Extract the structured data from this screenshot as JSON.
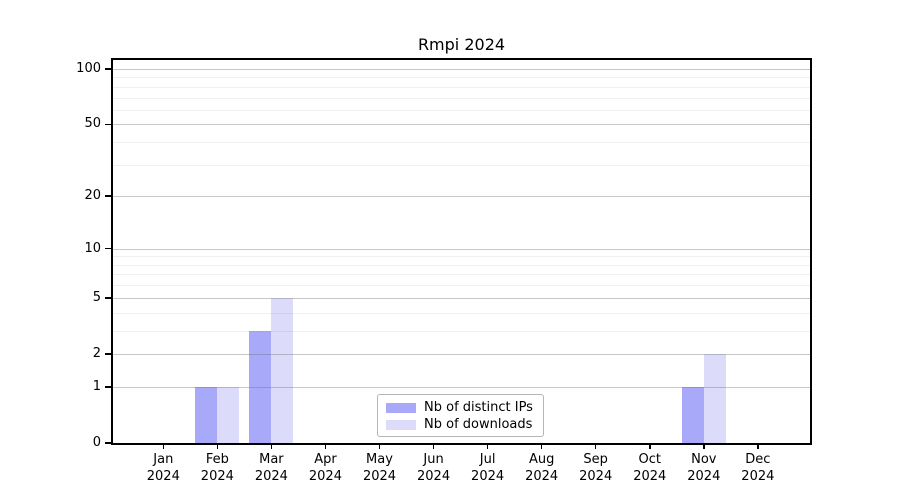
{
  "chart_data": {
    "type": "bar",
    "title": "Rmpi 2024",
    "x": {
      "months": [
        "Jan",
        "Feb",
        "Mar",
        "Apr",
        "May",
        "Jun",
        "Jul",
        "Aug",
        "Sep",
        "Oct",
        "Nov",
        "Dec"
      ],
      "year": "2024"
    },
    "series": [
      {
        "name": "Nb of distinct IPs",
        "color": "#a9a9fa",
        "values": [
          0,
          1,
          3,
          0,
          0,
          0,
          0,
          0,
          0,
          0,
          1,
          0
        ]
      },
      {
        "name": "Nb of downloads",
        "color": "#dcdcfa",
        "values": [
          0,
          1,
          5,
          0,
          0,
          0,
          0,
          0,
          0,
          0,
          2,
          0
        ]
      }
    ],
    "y_axis": {
      "scale": "log1p",
      "ylim": [
        0,
        100
      ],
      "major_ticks": [
        0,
        1,
        2,
        5,
        10,
        20,
        50,
        100
      ],
      "minor_ticks": [
        3,
        4,
        6,
        7,
        8,
        9,
        30,
        40,
        60,
        70,
        80,
        90
      ]
    },
    "grid": true,
    "legend_position": "bottom-center"
  },
  "colors": {
    "background": "#ffffff",
    "axis": "#000000",
    "text": "#000000",
    "grid": "#6e6e6e",
    "legend_border": "#b5b5b5",
    "bar_distinct_ips": "#a9a9fa",
    "bar_downloads": "#dcdcfa"
  }
}
